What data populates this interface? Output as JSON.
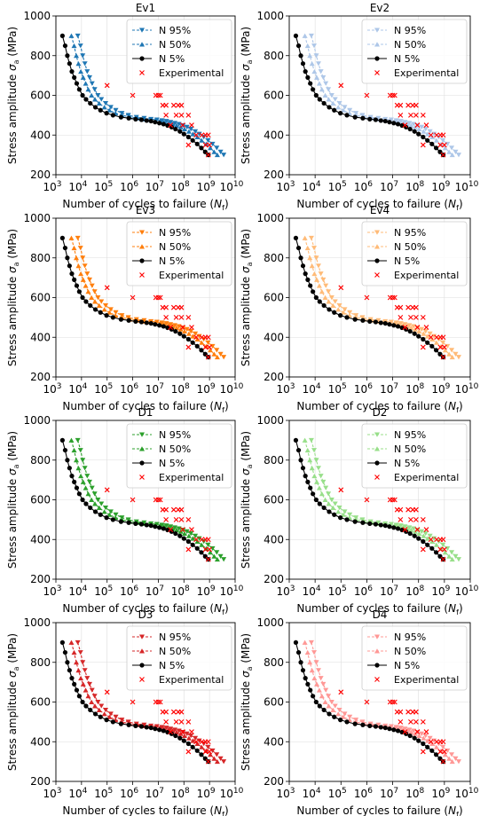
{
  "figure": {
    "ylabel_prefix": "Stress amplitude ",
    "ylabel_symbol": "σ",
    "ylabel_sub": "a",
    "ylabel_suffix": " (MPa)",
    "xlabel_prefix": "Number of cycles to failure (",
    "xlabel_symbol": "N",
    "xlabel_sub": "f",
    "xlabel_suffix": ")"
  },
  "palette": {
    "Ev1": [
      "#1f77b4",
      "#1f77b4"
    ],
    "Ev2": [
      "#aec7e8",
      "#aec7e8"
    ],
    "Ev3": [
      "#ff7f0e",
      "#ff7f0e"
    ],
    "Ev4": [
      "#ffbb78",
      "#ffbb78"
    ],
    "D1": [
      "#2ca02c",
      "#2ca02c"
    ],
    "D2": [
      "#98df8a",
      "#98df8a"
    ],
    "D3": [
      "#d62728",
      "#d62728"
    ],
    "D4": [
      "#ff9896",
      "#ff9896"
    ],
    "n5": "#000000",
    "experimental": "#ff0000"
  },
  "chart_data": [
    {
      "type": "line",
      "title": "Ev1",
      "xscale": "log",
      "xlim": [
        1000,
        10000000000
      ],
      "ylim": [
        200,
        1000
      ],
      "xticks": [
        "10^3",
        "10^4",
        "10^5",
        "10^6",
        "10^7",
        "10^8",
        "10^9",
        "10^10"
      ],
      "yticks": [
        200,
        400,
        600,
        800,
        1000
      ],
      "grid": true,
      "legend": "top-right",
      "series": [
        {
          "name": "N 95%",
          "shift_decades": 0.6
        },
        {
          "name": "N 50%",
          "shift_decades": 0.35
        },
        {
          "name": "N 5%",
          "shift_decades": 0
        },
        {
          "name": "Experimental"
        }
      ]
    },
    {
      "type": "line",
      "title": "Ev2",
      "xscale": "log",
      "xlim": [
        1000,
        10000000000
      ],
      "ylim": [
        200,
        1000
      ],
      "xticks": [
        "10^3",
        "10^4",
        "10^5",
        "10^6",
        "10^7",
        "10^8",
        "10^9",
        "10^10"
      ],
      "yticks": [
        200,
        400,
        600,
        800,
        1000
      ],
      "grid": true,
      "legend": "top-right",
      "series": [
        {
          "name": "N 95%",
          "shift_decades": 0.6
        },
        {
          "name": "N 50%",
          "shift_decades": 0.35
        },
        {
          "name": "N 5%",
          "shift_decades": 0
        },
        {
          "name": "Experimental"
        }
      ]
    },
    {
      "type": "line",
      "title": "Ev3",
      "xscale": "log",
      "xlim": [
        1000,
        10000000000
      ],
      "ylim": [
        200,
        1000
      ],
      "xticks": [
        "10^3",
        "10^4",
        "10^5",
        "10^6",
        "10^7",
        "10^8",
        "10^9",
        "10^10"
      ],
      "yticks": [
        200,
        400,
        600,
        800,
        1000
      ],
      "grid": true,
      "legend": "top-right",
      "series": [
        {
          "name": "N 95%",
          "shift_decades": 0.6
        },
        {
          "name": "N 50%",
          "shift_decades": 0.35
        },
        {
          "name": "N 5%",
          "shift_decades": 0
        },
        {
          "name": "Experimental"
        }
      ]
    },
    {
      "type": "line",
      "title": "Ev4",
      "xscale": "log",
      "xlim": [
        1000,
        10000000000
      ],
      "ylim": [
        200,
        1000
      ],
      "xticks": [
        "10^3",
        "10^4",
        "10^5",
        "10^6",
        "10^7",
        "10^8",
        "10^9",
        "10^10"
      ],
      "yticks": [
        200,
        400,
        600,
        800,
        1000
      ],
      "grid": true,
      "legend": "top-right",
      "series": [
        {
          "name": "N 95%",
          "shift_decades": 0.6
        },
        {
          "name": "N 50%",
          "shift_decades": 0.35
        },
        {
          "name": "N 5%",
          "shift_decades": 0
        },
        {
          "name": "Experimental"
        }
      ]
    },
    {
      "type": "line",
      "title": "D1",
      "xscale": "log",
      "xlim": [
        1000,
        10000000000
      ],
      "ylim": [
        200,
        1000
      ],
      "xticks": [
        "10^3",
        "10^4",
        "10^5",
        "10^6",
        "10^7",
        "10^8",
        "10^9",
        "10^10"
      ],
      "yticks": [
        200,
        400,
        600,
        800,
        1000
      ],
      "grid": true,
      "legend": "top-right",
      "series": [
        {
          "name": "N 95%",
          "shift_decades": 0.6
        },
        {
          "name": "N 50%",
          "shift_decades": 0.35
        },
        {
          "name": "N 5%",
          "shift_decades": 0
        },
        {
          "name": "Experimental"
        }
      ]
    },
    {
      "type": "line",
      "title": "D2",
      "xscale": "log",
      "xlim": [
        1000,
        10000000000
      ],
      "ylim": [
        200,
        1000
      ],
      "xticks": [
        "10^3",
        "10^4",
        "10^5",
        "10^6",
        "10^7",
        "10^8",
        "10^9",
        "10^10"
      ],
      "yticks": [
        200,
        400,
        600,
        800,
        1000
      ],
      "grid": true,
      "legend": "top-right",
      "series": [
        {
          "name": "N 95%",
          "shift_decades": 0.6
        },
        {
          "name": "N 50%",
          "shift_decades": 0.35
        },
        {
          "name": "N 5%",
          "shift_decades": 0
        },
        {
          "name": "Experimental"
        }
      ]
    },
    {
      "type": "line",
      "title": "D3",
      "xscale": "log",
      "xlim": [
        1000,
        10000000000
      ],
      "ylim": [
        200,
        1000
      ],
      "xticks": [
        "10^3",
        "10^4",
        "10^5",
        "10^6",
        "10^7",
        "10^8",
        "10^9",
        "10^10"
      ],
      "yticks": [
        200,
        400,
        600,
        800,
        1000
      ],
      "grid": true,
      "legend": "top-right",
      "series": [
        {
          "name": "N 95%",
          "shift_decades": 0.6
        },
        {
          "name": "N 50%",
          "shift_decades": 0.35
        },
        {
          "name": "N 5%",
          "shift_decades": 0
        },
        {
          "name": "Experimental"
        }
      ]
    },
    {
      "type": "line",
      "title": "D4",
      "xscale": "log",
      "xlim": [
        1000,
        10000000000
      ],
      "ylim": [
        200,
        1000
      ],
      "xticks": [
        "10^3",
        "10^4",
        "10^5",
        "10^6",
        "10^7",
        "10^8",
        "10^9",
        "10^10"
      ],
      "yticks": [
        200,
        400,
        600,
        800,
        1000
      ],
      "grid": true,
      "legend": "top-right",
      "series": [
        {
          "name": "N 95%",
          "shift_decades": 0.6
        },
        {
          "name": "N 50%",
          "shift_decades": 0.35
        },
        {
          "name": "N 5%",
          "shift_decades": 0
        },
        {
          "name": "Experimental"
        }
      ]
    }
  ],
  "n5_curve": {
    "stress": [
      900,
      850,
      800,
      760,
      720,
      690,
      660,
      630,
      600,
      580,
      560,
      540,
      525,
      510,
      500,
      490,
      485,
      480,
      477,
      473,
      470,
      465,
      460,
      455,
      448,
      440,
      430,
      418,
      405,
      390,
      373,
      355,
      335,
      315,
      300
    ],
    "cycles": [
      1800,
      2300,
      2800,
      3400,
      4200,
      5200,
      6500,
      8200,
      11000,
      15000,
      22000,
      35000,
      55000,
      95000,
      170000,
      350000,
      700000,
      1300000,
      2200000,
      3500000,
      5200000,
      7500000,
      11000000,
      16000000,
      23000000,
      33000000,
      47000000,
      70000000,
      100000000,
      150000000,
      220000000,
      330000000,
      480000000,
      680000000,
      900000000
    ]
  },
  "experimental_points": [
    {
      "n": 100000,
      "s": 650
    },
    {
      "n": 1000000,
      "s": 600
    },
    {
      "n": 10000000,
      "s": 600
    },
    {
      "n": 8000000,
      "s": 600
    },
    {
      "n": 12000000,
      "s": 600
    },
    {
      "n": 15000000,
      "s": 550
    },
    {
      "n": 20000000,
      "s": 550
    },
    {
      "n": 40000000,
      "s": 550
    },
    {
      "n": 60000000,
      "s": 550
    },
    {
      "n": 80000000,
      "s": 550
    },
    {
      "n": 20000000,
      "s": 500
    },
    {
      "n": 50000000,
      "s": 500
    },
    {
      "n": 80000000,
      "s": 500
    },
    {
      "n": 150000000,
      "s": 500
    },
    {
      "n": 30000000,
      "s": 450
    },
    {
      "n": 90000000,
      "s": 450
    },
    {
      "n": 200000000,
      "s": 450
    },
    {
      "n": 300000000,
      "s": 400
    },
    {
      "n": 500000000,
      "s": 400
    },
    {
      "n": 700000000,
      "s": 400
    },
    {
      "n": 900000000,
      "s": 400
    },
    {
      "n": 150000000,
      "s": 350
    },
    {
      "n": 700000000,
      "s": 350
    },
    {
      "n": 1000000000,
      "s": 350
    },
    {
      "n": 900000000,
      "s": 300
    }
  ]
}
